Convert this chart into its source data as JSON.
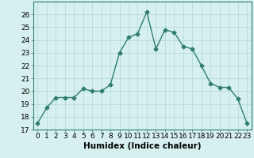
{
  "x": [
    0,
    1,
    2,
    3,
    4,
    5,
    6,
    7,
    8,
    9,
    10,
    11,
    12,
    13,
    14,
    15,
    16,
    17,
    18,
    19,
    20,
    21,
    22,
    23
  ],
  "y": [
    17.5,
    18.7,
    19.5,
    19.5,
    19.5,
    20.2,
    20.0,
    20.0,
    20.5,
    23.0,
    24.2,
    24.5,
    26.2,
    23.3,
    24.8,
    24.6,
    23.5,
    23.3,
    22.0,
    20.6,
    20.3,
    20.3,
    19.4,
    17.5
  ],
  "line_color": "#2e7d6e",
  "marker": "D",
  "marker_size": 2.5,
  "bg_color": "#d6f0ef",
  "grid_color": "#b0d8d5",
  "xlabel": "Humidex (Indice chaleur)",
  "ylim": [
    17,
    27
  ],
  "yticks": [
    17,
    18,
    19,
    20,
    21,
    22,
    23,
    24,
    25,
    26
  ],
  "xlim": [
    -0.5,
    23.5
  ],
  "xticks": [
    0,
    1,
    2,
    3,
    4,
    5,
    6,
    7,
    8,
    9,
    10,
    11,
    12,
    13,
    14,
    15,
    16,
    17,
    18,
    19,
    20,
    21,
    22,
    23
  ],
  "tick_label_fontsize": 6.5,
  "xlabel_fontsize": 7.5,
  "line_width": 1.0
}
